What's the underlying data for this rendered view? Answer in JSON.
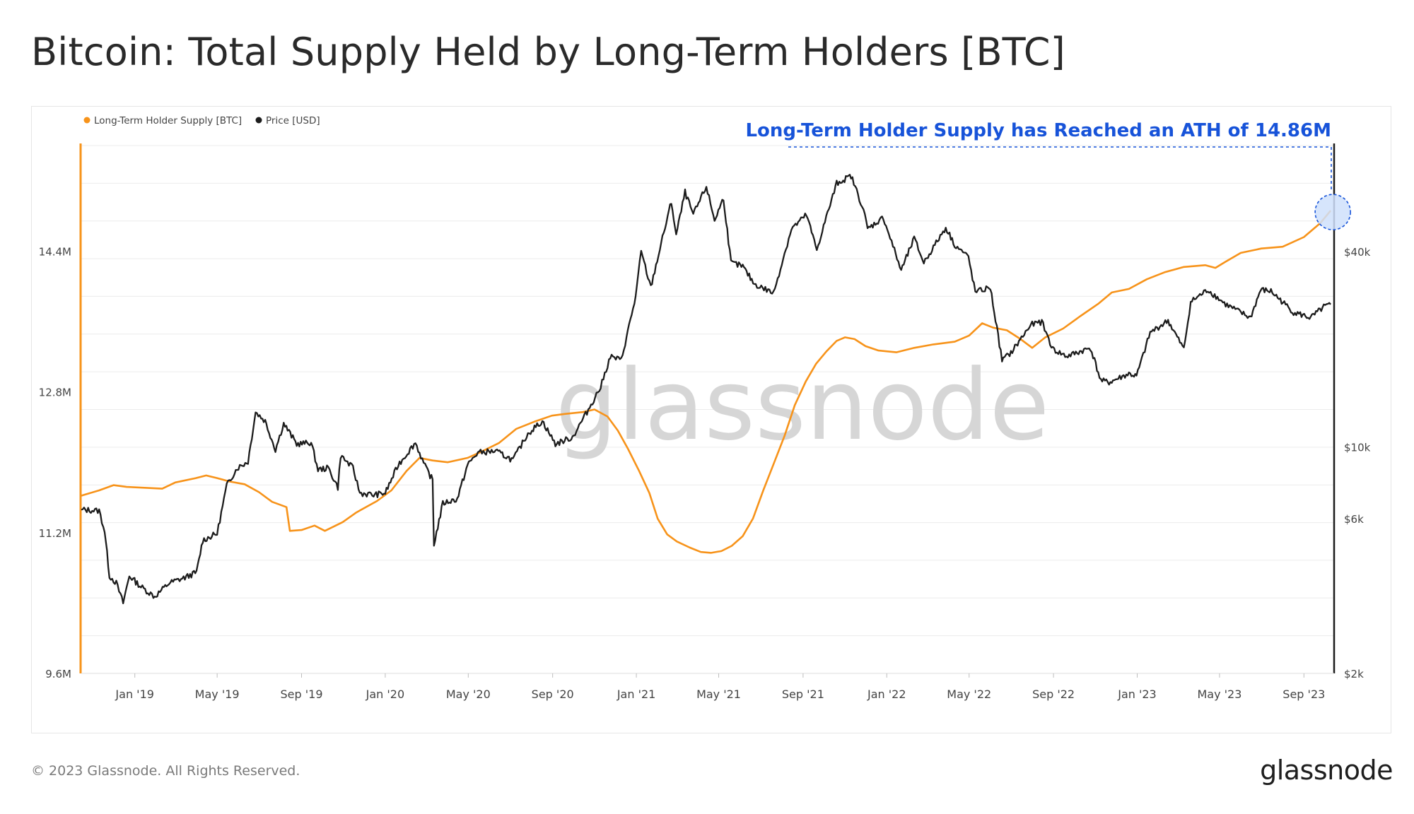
{
  "title": "Bitcoin: Total Supply Held by Long-Term Holders [BTC]",
  "copyright": "© 2023 Glassnode. All Rights Reserved.",
  "logo": "glassnode",
  "watermark": "glassnode",
  "colors": {
    "lth_supply": "#f7931a",
    "price": "#1c1c1c",
    "annotation": "#1753d9",
    "annotation_fill": "#cfe0fb",
    "grid": "#ececec",
    "left_axis": "#f7931a",
    "right_axis": "#1c1c1c",
    "watermark": "#d6d6d6"
  },
  "chart_data": {
    "type": "line",
    "title": "Bitcoin: Total Supply Held by Long-Term Holders [BTC]",
    "legend_position": "top-left",
    "grid": true,
    "x_ticks": [
      "Jan '19",
      "May '19",
      "Sep '19",
      "Jan '20",
      "May '20",
      "Sep '20",
      "Jan '21",
      "May '21",
      "Sep '21",
      "Jan '22",
      "May '22",
      "Sep '22",
      "Jan '23",
      "May '23",
      "Sep '23"
    ],
    "x_range": [
      "2018-10-15",
      "2023-10-15"
    ],
    "y_left": {
      "label": "",
      "ticks": [
        "9.6M",
        "11.2M",
        "12.8M",
        "14.4M"
      ],
      "tick_values": [
        9.6,
        11.2,
        12.8,
        14.4
      ],
      "range": [
        9.6,
        15.6
      ],
      "unit": "M BTC"
    },
    "y_right": {
      "label": "",
      "scale": "log",
      "ticks": [
        "$2k",
        "$6k",
        "$10k",
        "$40k"
      ],
      "tick_values": [
        2000,
        6000,
        10000,
        40000
      ],
      "range": [
        2000,
        85000
      ]
    },
    "annotation": {
      "text": "Long-Term Holder Supply has Reached an ATH of 14.86M",
      "date": "2023-10-10",
      "value": 14.86
    },
    "series": [
      {
        "name": "Long-Term Holder Supply [BTC]",
        "axis": "left",
        "points": [
          [
            "2018-10-15",
            11.62
          ],
          [
            "2018-11-10",
            11.68
          ],
          [
            "2018-12-01",
            11.74
          ],
          [
            "2018-12-20",
            11.72
          ],
          [
            "2019-01-15",
            11.71
          ],
          [
            "2019-02-10",
            11.7
          ],
          [
            "2019-03-01",
            11.77
          ],
          [
            "2019-03-31",
            11.82
          ],
          [
            "2019-04-15",
            11.85
          ],
          [
            "2019-05-01",
            11.82
          ],
          [
            "2019-05-20",
            11.78
          ],
          [
            "2019-06-10",
            11.75
          ],
          [
            "2019-07-01",
            11.66
          ],
          [
            "2019-07-20",
            11.55
          ],
          [
            "2019-08-10",
            11.49
          ],
          [
            "2019-08-15",
            11.22
          ],
          [
            "2019-09-01",
            11.23
          ],
          [
            "2019-09-20",
            11.28
          ],
          [
            "2019-10-05",
            11.22
          ],
          [
            "2019-10-31",
            11.32
          ],
          [
            "2019-11-20",
            11.43
          ],
          [
            "2019-12-20",
            11.56
          ],
          [
            "2020-01-10",
            11.68
          ],
          [
            "2020-02-01",
            11.9
          ],
          [
            "2020-02-20",
            12.05
          ],
          [
            "2020-03-10",
            12.02
          ],
          [
            "2020-04-01",
            12.0
          ],
          [
            "2020-04-30",
            12.05
          ],
          [
            "2020-05-20",
            12.12
          ],
          [
            "2020-06-15",
            12.22
          ],
          [
            "2020-07-10",
            12.38
          ],
          [
            "2020-08-05",
            12.46
          ],
          [
            "2020-08-31",
            12.53
          ],
          [
            "2020-09-20",
            12.55
          ],
          [
            "2020-10-15",
            12.57
          ],
          [
            "2020-11-01",
            12.6
          ],
          [
            "2020-11-20",
            12.52
          ],
          [
            "2020-12-05",
            12.36
          ],
          [
            "2020-12-20",
            12.15
          ],
          [
            "2021-01-05",
            11.9
          ],
          [
            "2021-01-20",
            11.65
          ],
          [
            "2021-02-01",
            11.36
          ],
          [
            "2021-02-15",
            11.18
          ],
          [
            "2021-03-01",
            11.1
          ],
          [
            "2021-03-20",
            11.03
          ],
          [
            "2021-04-05",
            10.98
          ],
          [
            "2021-04-20",
            10.97
          ],
          [
            "2021-05-05",
            10.99
          ],
          [
            "2021-05-20",
            11.05
          ],
          [
            "2021-06-05",
            11.16
          ],
          [
            "2021-06-20",
            11.36
          ],
          [
            "2021-07-05",
            11.68
          ],
          [
            "2021-07-20",
            11.98
          ],
          [
            "2021-08-05",
            12.3
          ],
          [
            "2021-08-20",
            12.65
          ],
          [
            "2021-09-05",
            12.92
          ],
          [
            "2021-09-20",
            13.12
          ],
          [
            "2021-10-05",
            13.26
          ],
          [
            "2021-10-20",
            13.38
          ],
          [
            "2021-11-01",
            13.42
          ],
          [
            "2021-11-15",
            13.4
          ],
          [
            "2021-12-01",
            13.32
          ],
          [
            "2021-12-20",
            13.27
          ],
          [
            "2022-01-15",
            13.25
          ],
          [
            "2022-02-10",
            13.3
          ],
          [
            "2022-03-10",
            13.34
          ],
          [
            "2022-04-10",
            13.37
          ],
          [
            "2022-05-01",
            13.44
          ],
          [
            "2022-05-20",
            13.58
          ],
          [
            "2022-06-05",
            13.53
          ],
          [
            "2022-06-25",
            13.5
          ],
          [
            "2022-07-15",
            13.4
          ],
          [
            "2022-08-01",
            13.3
          ],
          [
            "2022-08-20",
            13.42
          ],
          [
            "2022-09-15",
            13.52
          ],
          [
            "2022-10-10",
            13.66
          ],
          [
            "2022-11-05",
            13.8
          ],
          [
            "2022-11-25",
            13.93
          ],
          [
            "2022-12-20",
            13.97
          ],
          [
            "2023-01-15",
            14.08
          ],
          [
            "2023-02-10",
            14.16
          ],
          [
            "2023-03-10",
            14.22
          ],
          [
            "2023-04-10",
            14.24
          ],
          [
            "2023-04-25",
            14.21
          ],
          [
            "2023-05-10",
            14.28
          ],
          [
            "2023-06-01",
            14.38
          ],
          [
            "2023-07-01",
            14.43
          ],
          [
            "2023-08-01",
            14.45
          ],
          [
            "2023-09-01",
            14.56
          ],
          [
            "2023-09-25",
            14.72
          ],
          [
            "2023-10-10",
            14.86
          ]
        ]
      },
      {
        "name": "Price [USD]",
        "axis": "right",
        "points": [
          [
            "2018-10-15",
            6400
          ],
          [
            "2018-11-10",
            6350
          ],
          [
            "2018-11-18",
            5500
          ],
          [
            "2018-11-25",
            4000
          ],
          [
            "2018-12-05",
            3800
          ],
          [
            "2018-12-15",
            3300
          ],
          [
            "2018-12-24",
            4000
          ],
          [
            "2019-01-10",
            3700
          ],
          [
            "2019-01-30",
            3450
          ],
          [
            "2019-02-20",
            3800
          ],
          [
            "2019-03-15",
            3950
          ],
          [
            "2019-04-01",
            4100
          ],
          [
            "2019-04-10",
            5150
          ],
          [
            "2019-05-01",
            5400
          ],
          [
            "2019-05-15",
            7600
          ],
          [
            "2019-05-30",
            8600
          ],
          [
            "2019-06-15",
            9000
          ],
          [
            "2019-06-26",
            12800
          ],
          [
            "2019-07-10",
            12000
          ],
          [
            "2019-07-25",
            9800
          ],
          [
            "2019-08-06",
            11800
          ],
          [
            "2019-08-25",
            10200
          ],
          [
            "2019-09-15",
            10300
          ],
          [
            "2019-09-25",
            8500
          ],
          [
            "2019-10-10",
            8600
          ],
          [
            "2019-10-24",
            7500
          ],
          [
            "2019-10-28",
            9400
          ],
          [
            "2019-11-15",
            8600
          ],
          [
            "2019-11-25",
            7200
          ],
          [
            "2019-12-15",
            7100
          ],
          [
            "2020-01-01",
            7200
          ],
          [
            "2020-01-20",
            8800
          ],
          [
            "2020-02-14",
            10300
          ],
          [
            "2020-02-28",
            8700
          ],
          [
            "2020-03-10",
            7900
          ],
          [
            "2020-03-12",
            5000
          ],
          [
            "2020-03-25",
            6700
          ],
          [
            "2020-04-15",
            6900
          ],
          [
            "2020-04-30",
            8800
          ],
          [
            "2020-05-15",
            9600
          ],
          [
            "2020-06-10",
            9700
          ],
          [
            "2020-07-05",
            9100
          ],
          [
            "2020-07-27",
            11000
          ],
          [
            "2020-08-17",
            12000
          ],
          [
            "2020-09-05",
            10200
          ],
          [
            "2020-09-30",
            10700
          ],
          [
            "2020-10-21",
            12800
          ],
          [
            "2020-11-10",
            15300
          ],
          [
            "2020-11-24",
            19000
          ],
          [
            "2020-12-10",
            18500
          ],
          [
            "2020-12-31",
            29000
          ],
          [
            "2021-01-08",
            40000
          ],
          [
            "2021-01-22",
            31000
          ],
          [
            "2021-02-08",
            44000
          ],
          [
            "2021-02-21",
            57000
          ],
          [
            "2021-02-28",
            45000
          ],
          [
            "2021-03-13",
            61000
          ],
          [
            "2021-03-25",
            52000
          ],
          [
            "2021-04-13",
            63500
          ],
          [
            "2021-04-25",
            50000
          ],
          [
            "2021-05-08",
            58500
          ],
          [
            "2021-05-19",
            37000
          ],
          [
            "2021-06-05",
            36000
          ],
          [
            "2021-06-22",
            31800
          ],
          [
            "2021-07-20",
            29800
          ],
          [
            "2021-08-15",
            47000
          ],
          [
            "2021-09-06",
            52000
          ],
          [
            "2021-09-21",
            40500
          ],
          [
            "2021-10-01",
            48000
          ],
          [
            "2021-10-20",
            65000
          ],
          [
            "2021-11-10",
            68500
          ],
          [
            "2021-11-28",
            54000
          ],
          [
            "2021-12-04",
            47000
          ],
          [
            "2021-12-27",
            51000
          ],
          [
            "2022-01-22",
            35000
          ],
          [
            "2022-02-10",
            44000
          ],
          [
            "2022-02-24",
            37000
          ],
          [
            "2022-03-28",
            47500
          ],
          [
            "2022-04-10",
            42000
          ],
          [
            "2022-04-30",
            38500
          ],
          [
            "2022-05-10",
            30000
          ],
          [
            "2022-06-01",
            31000
          ],
          [
            "2022-06-18",
            18500
          ],
          [
            "2022-07-01",
            19500
          ],
          [
            "2022-07-30",
            23800
          ],
          [
            "2022-08-15",
            24300
          ],
          [
            "2022-08-31",
            20000
          ],
          [
            "2022-09-20",
            19000
          ],
          [
            "2022-10-25",
            20200
          ],
          [
            "2022-11-09",
            16000
          ],
          [
            "2022-11-21",
            15800
          ],
          [
            "2022-12-20",
            16800
          ],
          [
            "2022-12-31",
            16500
          ],
          [
            "2023-01-20",
            22500
          ],
          [
            "2023-02-15",
            24500
          ],
          [
            "2023-03-10",
            20000
          ],
          [
            "2023-03-20",
            28000
          ],
          [
            "2023-04-14",
            30500
          ],
          [
            "2023-05-10",
            27500
          ],
          [
            "2023-06-15",
            25000
          ],
          [
            "2023-06-30",
            30500
          ],
          [
            "2023-07-15",
            30200
          ],
          [
            "2023-08-17",
            26000
          ],
          [
            "2023-09-11",
            25000
          ],
          [
            "2023-09-30",
            27000
          ],
          [
            "2023-10-10",
            27500
          ]
        ]
      }
    ]
  }
}
